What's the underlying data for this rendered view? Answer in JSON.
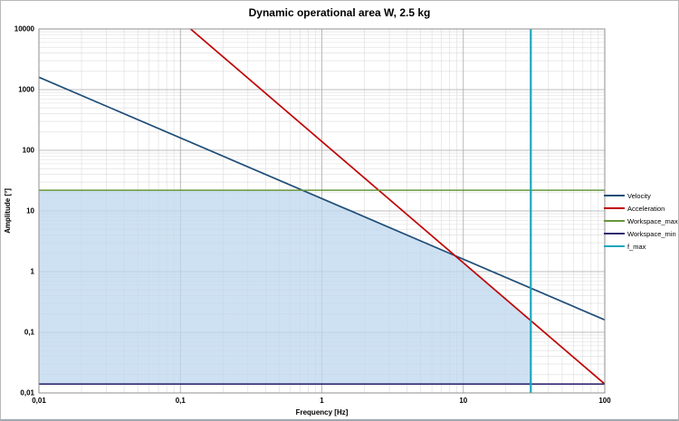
{
  "page": {
    "background": "#FFFFFF",
    "border_color": "#B8B8B8"
  },
  "chart_data": {
    "type": "line",
    "title": "Dynamic operational area W, 2.5 kg",
    "xlabel": "Frequency [Hz]",
    "ylabel": "Amplitude [°]",
    "x_scale": "log",
    "y_scale": "log",
    "xlim": [
      0.01,
      100
    ],
    "ylim": [
      0.01,
      10000
    ],
    "grid": {
      "minor": true,
      "minor_color": "#DCDCDC",
      "major_color": "#A9A9A9",
      "border_color": "#8F8F8F"
    },
    "legend_position": "right-outside",
    "x_ticks": [
      {
        "value": 0.01,
        "label": "0,01"
      },
      {
        "value": 0.1,
        "label": "0,1"
      },
      {
        "value": 1,
        "label": "1"
      },
      {
        "value": 10,
        "label": "10"
      },
      {
        "value": 100,
        "label": "100"
      }
    ],
    "y_ticks": [
      {
        "value": 0.01,
        "label": "0,01"
      },
      {
        "value": 0.1,
        "label": "0,1"
      },
      {
        "value": 1,
        "label": "1"
      },
      {
        "value": 10,
        "label": "10"
      },
      {
        "value": 100,
        "label": "100"
      },
      {
        "value": 1000,
        "label": "1000"
      },
      {
        "value": 10000,
        "label": "10000"
      }
    ],
    "series": [
      {
        "name": "Velocity",
        "color": "#1F4E79",
        "width": 1.7,
        "points": [
          [
            0.01,
            1600
          ],
          [
            100,
            0.16
          ]
        ]
      },
      {
        "name": "Acceleration",
        "color": "#C00000",
        "width": 1.7,
        "points": [
          [
            0.118,
            10000
          ],
          [
            100,
            0.014
          ]
        ]
      },
      {
        "name": "Workspace_max",
        "color": "#67973A",
        "width": 1.5,
        "points": [
          [
            0.01,
            22
          ],
          [
            100,
            22
          ]
        ]
      },
      {
        "name": "Workspace_min",
        "color": "#322B70",
        "width": 1.7,
        "points": [
          [
            0.01,
            0.014
          ],
          [
            100,
            0.014
          ]
        ]
      },
      {
        "name": "f_max",
        "color": "#18A7BE",
        "width": 2.2,
        "points": [
          [
            30,
            0.01
          ],
          [
            30,
            10000
          ]
        ]
      }
    ],
    "shaded_region": {
      "name": "dynamic operational area",
      "color": "#BDD7EE",
      "opacity": 0.75,
      "vertices": [
        [
          0.01,
          0.014
        ],
        [
          0.01,
          22
        ],
        [
          0.727,
          22
        ],
        [
          8.75,
          1.83
        ],
        [
          30,
          0.156
        ],
        [
          30,
          0.014
        ]
      ]
    }
  }
}
